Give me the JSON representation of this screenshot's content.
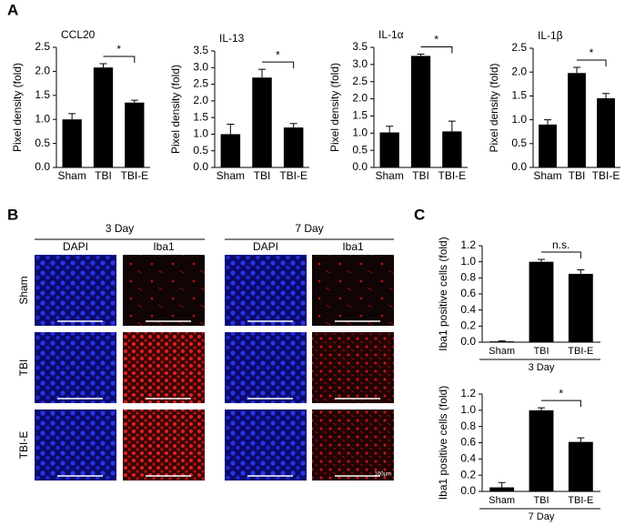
{
  "panel_labels": [
    "A",
    "B",
    "C"
  ],
  "chart_data": [
    {
      "type": "bar",
      "title": "CCL20",
      "ylabel": "Pixel density (fold)",
      "categories": [
        "Sham",
        "TBI",
        "TBI-E"
      ],
      "values": [
        1.0,
        2.08,
        1.35
      ],
      "errors": [
        0.12,
        0.08,
        0.05
      ],
      "color": "#000000",
      "ylim": [
        0,
        2.5
      ],
      "yticks": [
        {
          "value": 0,
          "label": "0.0"
        },
        0.5,
        {
          "value": 1,
          "label": "1.0"
        },
        1.5,
        {
          "value": 2,
          "label": "2.0"
        },
        2.5
      ],
      "annotation": "*"
    },
    {
      "type": "bar",
      "title": "IL-13",
      "ylabel": "Pixel density (fold)",
      "categories": [
        "Sham",
        "TBI",
        "TBI-E"
      ],
      "values": [
        1.0,
        2.7,
        1.2
      ],
      "errors": [
        0.3,
        0.25,
        0.12
      ],
      "color": "#000000",
      "ylim": [
        0,
        3.5
      ],
      "yticks": [
        {
          "value": 0,
          "label": "0.0"
        },
        0.5,
        {
          "value": 1,
          "label": "1.0"
        },
        1.5,
        {
          "value": 2,
          "label": "2.0"
        },
        2.5,
        {
          "value": 3,
          "label": "3.0"
        },
        3.5
      ],
      "annotation": "*"
    },
    {
      "type": "bar",
      "title": "IL-1α",
      "ylabel": "Pixel density (fold)",
      "categories": [
        "Sham",
        "TBI",
        "TBI-E"
      ],
      "values": [
        1.02,
        3.25,
        1.05
      ],
      "errors": [
        0.18,
        0.05,
        0.3
      ],
      "color": "#000000",
      "ylim": [
        0,
        3.5
      ],
      "yticks": [
        {
          "value": 0,
          "label": "0.0"
        },
        0.5,
        {
          "value": 1,
          "label": "1.0"
        },
        1.5,
        {
          "value": 2,
          "label": "2.0"
        },
        2.5,
        {
          "value": 3,
          "label": "3.0"
        },
        3.5
      ],
      "annotation": "*"
    },
    {
      "type": "bar",
      "title": "IL-1β",
      "ylabel": "Pixel density (fold)",
      "categories": [
        "Sham",
        "TBI",
        "TBI-E"
      ],
      "values": [
        0.9,
        1.98,
        1.45
      ],
      "errors": [
        0.1,
        0.12,
        0.1
      ],
      "color": "#000000",
      "ylim": [
        0,
        2.5
      ],
      "yticks": [
        {
          "value": 0,
          "label": "0.0"
        },
        0.5,
        {
          "value": 1,
          "label": "1.0"
        },
        1.5,
        {
          "value": 2,
          "label": "2.0"
        },
        2.5
      ],
      "annotation": "*"
    },
    {
      "type": "bar",
      "ylabel": "Iba1 positive cells (fold)",
      "xlabel": "3 Day",
      "categories": [
        "Sham",
        "TBI",
        "TBI-E"
      ],
      "values": [
        0.01,
        1.0,
        0.85
      ],
      "errors": [
        0.005,
        0.03,
        0.05
      ],
      "color": "#000000",
      "ylim": [
        0,
        1.2
      ],
      "yticks": [
        {
          "value": 0,
          "label": "0.0"
        },
        0.2,
        0.4,
        0.6,
        0.8,
        {
          "value": 1,
          "label": "1.0"
        },
        1.2
      ],
      "annotation": "n.s."
    },
    {
      "type": "bar",
      "ylabel": "Iba1 positive cells (fold)",
      "xlabel": "7 Day",
      "categories": [
        "Sham",
        "TBI",
        "TBI-E"
      ],
      "values": [
        0.05,
        1.0,
        0.61
      ],
      "errors": [
        0.06,
        0.03,
        0.05
      ],
      "color": "#000000",
      "ylim": [
        0,
        1.2
      ],
      "yticks": [
        {
          "value": 0,
          "label": "0.0"
        },
        0.2,
        0.4,
        0.6,
        0.8,
        {
          "value": 1,
          "label": "1.0"
        },
        1.2
      ],
      "annotation": "*"
    }
  ],
  "images": {
    "groups": [
      "3 Day",
      "7 Day"
    ],
    "stains": [
      "DAPI",
      "Iba1"
    ],
    "rows": [
      "Sham",
      "TBI",
      "TBI-E"
    ],
    "scale_bar": "100µm"
  }
}
